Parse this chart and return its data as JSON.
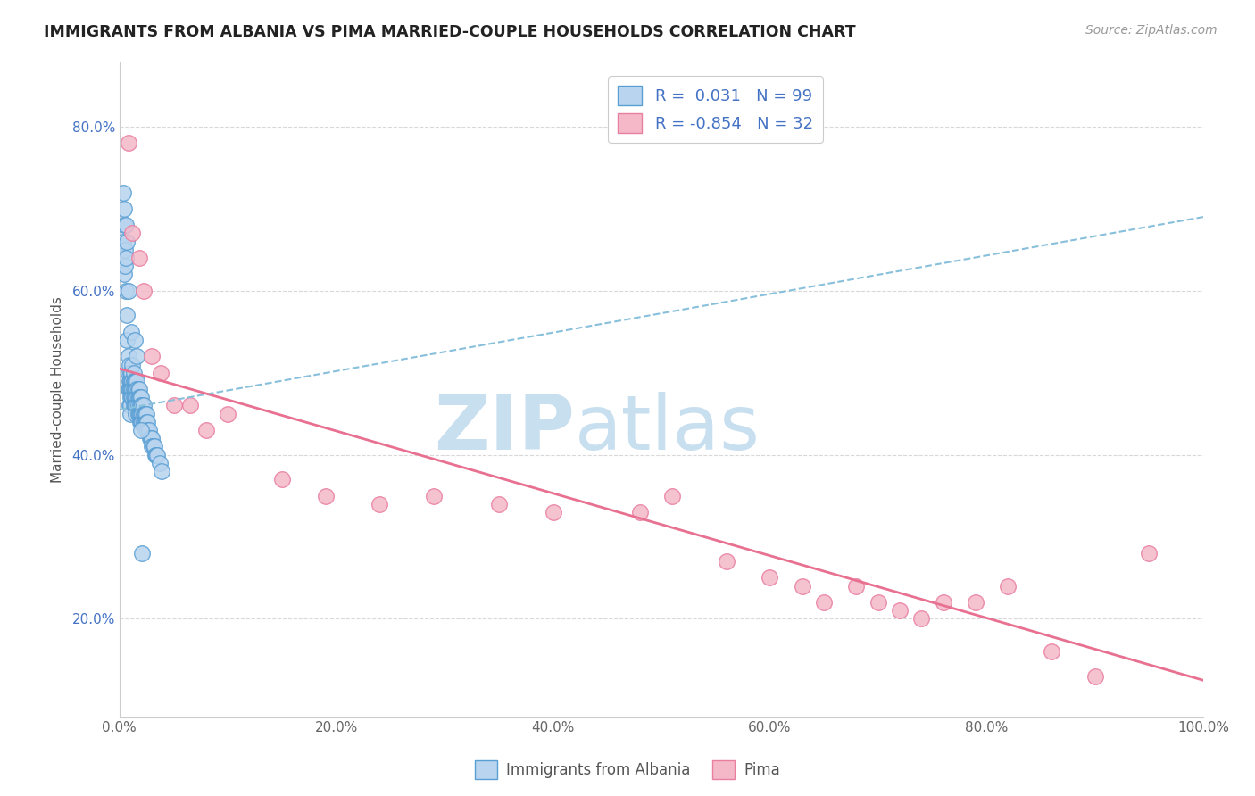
{
  "title": "IMMIGRANTS FROM ALBANIA VS PIMA MARRIED-COUPLE HOUSEHOLDS CORRELATION CHART",
  "source": "Source: ZipAtlas.com",
  "ylabel": "Married-couple Households",
  "xlim": [
    0,
    1.0
  ],
  "ylim": [
    0.08,
    0.88
  ],
  "xticks": [
    0.0,
    0.2,
    0.4,
    0.6,
    0.8,
    1.0
  ],
  "yticks": [
    0.2,
    0.4,
    0.6,
    0.8
  ],
  "ytick_labels": [
    "20.0%",
    "40.0%",
    "60.0%",
    "80.0%"
  ],
  "xtick_labels": [
    "0.0%",
    "20.0%",
    "40.0%",
    "60.0%",
    "80.0%",
    "100.0%"
  ],
  "legend_labels": [
    "Immigrants from Albania",
    "Pima"
  ],
  "blue_R": 0.031,
  "blue_N": 99,
  "pink_R": -0.854,
  "pink_N": 32,
  "blue_color": "#b8d4ee",
  "blue_edge_color": "#5a9fd4",
  "pink_color": "#f4b8c8",
  "pink_edge_color": "#e87fa0",
  "blue_scatter_x": [
    0.003,
    0.004,
    0.004,
    0.005,
    0.005,
    0.006,
    0.006,
    0.007,
    0.007,
    0.008,
    0.008,
    0.008,
    0.009,
    0.009,
    0.009,
    0.009,
    0.01,
    0.01,
    0.01,
    0.01,
    0.01,
    0.01,
    0.011,
    0.011,
    0.011,
    0.011,
    0.012,
    0.012,
    0.012,
    0.012,
    0.013,
    0.013,
    0.013,
    0.013,
    0.013,
    0.014,
    0.014,
    0.014,
    0.014,
    0.015,
    0.015,
    0.015,
    0.015,
    0.015,
    0.016,
    0.016,
    0.016,
    0.016,
    0.017,
    0.017,
    0.017,
    0.017,
    0.018,
    0.018,
    0.018,
    0.019,
    0.019,
    0.019,
    0.019,
    0.02,
    0.02,
    0.02,
    0.02,
    0.021,
    0.021,
    0.021,
    0.022,
    0.022,
    0.022,
    0.023,
    0.023,
    0.024,
    0.024,
    0.024,
    0.025,
    0.025,
    0.026,
    0.026,
    0.027,
    0.028,
    0.029,
    0.03,
    0.03,
    0.031,
    0.032,
    0.033,
    0.034,
    0.035,
    0.037,
    0.039,
    0.003,
    0.004,
    0.006,
    0.007,
    0.008,
    0.011,
    0.014,
    0.016,
    0.021,
    0.02
  ],
  "blue_scatter_y": [
    0.66,
    0.62,
    0.68,
    0.65,
    0.63,
    0.64,
    0.6,
    0.57,
    0.54,
    0.52,
    0.5,
    0.48,
    0.51,
    0.49,
    0.48,
    0.46,
    0.5,
    0.49,
    0.48,
    0.47,
    0.46,
    0.45,
    0.5,
    0.49,
    0.48,
    0.47,
    0.51,
    0.49,
    0.48,
    0.47,
    0.5,
    0.49,
    0.48,
    0.47,
    0.46,
    0.49,
    0.48,
    0.47,
    0.46,
    0.49,
    0.48,
    0.47,
    0.46,
    0.45,
    0.49,
    0.48,
    0.47,
    0.46,
    0.48,
    0.47,
    0.46,
    0.45,
    0.48,
    0.47,
    0.45,
    0.47,
    0.46,
    0.45,
    0.44,
    0.47,
    0.46,
    0.45,
    0.44,
    0.46,
    0.45,
    0.44,
    0.46,
    0.45,
    0.44,
    0.45,
    0.44,
    0.45,
    0.44,
    0.43,
    0.45,
    0.44,
    0.44,
    0.43,
    0.43,
    0.42,
    0.42,
    0.42,
    0.41,
    0.41,
    0.41,
    0.4,
    0.4,
    0.4,
    0.39,
    0.38,
    0.72,
    0.7,
    0.68,
    0.66,
    0.6,
    0.55,
    0.54,
    0.52,
    0.28,
    0.43
  ],
  "pink_scatter_x": [
    0.008,
    0.012,
    0.018,
    0.022,
    0.03,
    0.038,
    0.05,
    0.065,
    0.08,
    0.1,
    0.15,
    0.19,
    0.24,
    0.29,
    0.35,
    0.4,
    0.48,
    0.51,
    0.56,
    0.6,
    0.63,
    0.65,
    0.68,
    0.7,
    0.72,
    0.74,
    0.76,
    0.79,
    0.82,
    0.86,
    0.9,
    0.95
  ],
  "pink_scatter_y": [
    0.78,
    0.67,
    0.64,
    0.6,
    0.52,
    0.5,
    0.46,
    0.46,
    0.43,
    0.45,
    0.37,
    0.35,
    0.34,
    0.35,
    0.34,
    0.33,
    0.33,
    0.35,
    0.27,
    0.25,
    0.24,
    0.22,
    0.24,
    0.22,
    0.21,
    0.2,
    0.22,
    0.22,
    0.24,
    0.16,
    0.13,
    0.28
  ],
  "blue_trendline_x": [
    0.0,
    1.0
  ],
  "blue_trendline_y": [
    0.455,
    0.69
  ],
  "pink_trendline_x": [
    0.0,
    1.0
  ],
  "pink_trendline_y": [
    0.505,
    0.125
  ],
  "watermark_zip": "ZIP",
  "watermark_atlas": "atlas",
  "watermark_color_zip": "#c8dff0",
  "watermark_color_atlas": "#c8dff0",
  "background_color": "#ffffff",
  "grid_color": "#d8d8d8"
}
